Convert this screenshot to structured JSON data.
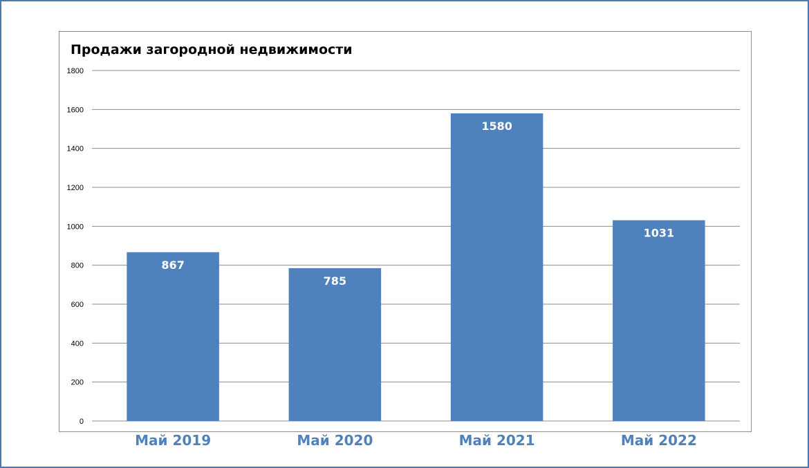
{
  "chart_data": {
    "type": "bar",
    "title": "Продажи загородной недвижимости",
    "categories": [
      "Май 2019",
      "Май 2020",
      "Май 2021",
      "Май 2022"
    ],
    "values": [
      867,
      785,
      1580,
      1031
    ],
    "data_labels": [
      "867",
      "785",
      "1580",
      "1031"
    ],
    "ylim": [
      0,
      1800
    ],
    "yticks": [
      0,
      200,
      400,
      600,
      800,
      1000,
      1200,
      1400,
      1600,
      1800
    ],
    "grid": true,
    "legend": "none",
    "bar_color": "#4f81bd",
    "category_label_color": "#4f81bd"
  }
}
